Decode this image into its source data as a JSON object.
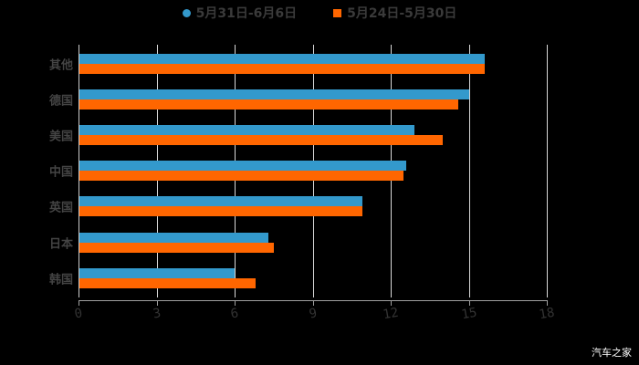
{
  "chart_data": {
    "type": "bar",
    "orientation": "horizontal",
    "title": "",
    "xlabel": "",
    "ylabel": "",
    "categories": [
      "其他",
      "德国",
      "美国",
      "中国",
      "英国",
      "日本",
      "韩国"
    ],
    "series": [
      {
        "name": "5月31日-6月6日",
        "color": "#3399cc",
        "values": [
          15.6,
          15.0,
          12.9,
          12.6,
          10.9,
          7.3,
          6.0
        ]
      },
      {
        "name": "5月24日-5月30日",
        "color": "#ff6600",
        "values": [
          15.6,
          14.6,
          14.0,
          12.5,
          10.9,
          7.5,
          6.8
        ]
      }
    ],
    "xlim": [
      0,
      18
    ],
    "xticks": [
      "0",
      "3",
      "6",
      "9",
      "12",
      "15",
      "18"
    ],
    "grid": true,
    "legend_position": "top"
  },
  "legend": {
    "items": [
      {
        "label": "5月31日-6月6日",
        "color": "#3399cc",
        "shape": "circle"
      },
      {
        "label": "5月24日-5月30日",
        "color": "#ff6600",
        "shape": "square"
      }
    ]
  },
  "watermark": "汽车之家"
}
